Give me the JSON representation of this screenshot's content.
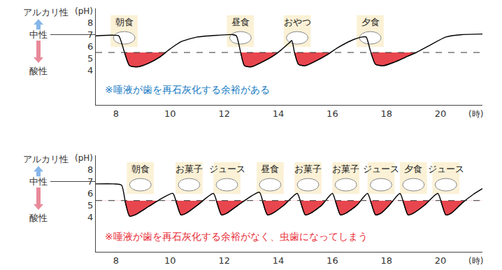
{
  "chart_data": [
    {
      "type": "line",
      "x": [
        7.25,
        7.9,
        8.1,
        8.3,
        8.5,
        8.8,
        9.2,
        9.6,
        10.0,
        10.4,
        11.0,
        11.8,
        12.3,
        12.45,
        12.6,
        12.75,
        13.0,
        13.4,
        13.8,
        14.1,
        14.4,
        14.5,
        14.6,
        14.75,
        15.0,
        15.4,
        15.8,
        16.2,
        16.7,
        17.1,
        17.25,
        17.4,
        17.6,
        17.9,
        18.3,
        18.7,
        19.1,
        19.6,
        20.2,
        20.8,
        21.55
      ],
      "values": [
        6.9,
        6.95,
        6.9,
        5.6,
        4.4,
        4.3,
        4.6,
        5.1,
        5.8,
        6.4,
        6.8,
        6.95,
        7.0,
        6.9,
        5.6,
        4.4,
        4.3,
        4.7,
        5.2,
        5.7,
        6.3,
        6.5,
        5.5,
        4.5,
        4.4,
        4.8,
        5.3,
        5.9,
        6.5,
        6.8,
        6.8,
        5.7,
        4.5,
        4.4,
        4.7,
        5.1,
        5.5,
        6.1,
        6.8,
        7.0,
        7.05
      ],
      "color": "#000000",
      "xlim": [
        7.25,
        21.55
      ],
      "ylim": [
        1.1,
        9.2
      ],
      "xticks": [
        8,
        10,
        12,
        14,
        16,
        18,
        20
      ],
      "yticks": [
        4,
        5,
        6,
        7,
        8
      ],
      "xlabel": "(時)",
      "ylabel": "(pH)",
      "threshold": 5.5,
      "scale_labels": {
        "alkaline": "アルカリ性",
        "neutral": {
          "text": "中性",
          "value": 7
        },
        "acidic": "酸性"
      },
      "annotations": [
        {
          "x": 8.3,
          "text": "朝食"
        },
        {
          "x": 12.6,
          "text": "昼食"
        },
        {
          "x": 14.7,
          "text": "おやつ"
        },
        {
          "x": 17.4,
          "text": "夕食"
        }
      ],
      "note": {
        "text": "※唾液が歯を再石灰化する余裕がある",
        "color": "#1a7dc4"
      }
    },
    {
      "type": "line",
      "x": [
        7.25,
        7.9,
        8.2,
        8.35,
        8.5,
        8.7,
        9.2,
        9.7,
        10.1,
        10.25,
        10.4,
        10.6,
        11.0,
        11.6,
        11.75,
        11.9,
        12.1,
        12.5,
        13.3,
        13.45,
        13.6,
        13.8,
        14.2,
        14.7,
        14.85,
        15.0,
        15.2,
        15.6,
        16.0,
        16.15,
        16.3,
        16.5,
        16.9,
        17.3,
        17.45,
        17.6,
        17.8,
        18.1,
        18.5,
        18.65,
        18.8,
        19.0,
        19.4,
        19.9,
        20.05,
        20.2,
        20.4,
        20.8,
        21.2,
        21.55
      ],
      "values": [
        6.8,
        6.8,
        6.7,
        5.2,
        4.1,
        4.2,
        4.9,
        5.6,
        6.0,
        5.1,
        4.2,
        4.35,
        5.0,
        6.0,
        5.1,
        4.2,
        4.35,
        5.0,
        6.1,
        5.1,
        4.2,
        4.35,
        5.0,
        6.0,
        5.1,
        4.2,
        4.35,
        5.0,
        6.0,
        5.1,
        4.2,
        4.35,
        5.0,
        6.0,
        5.1,
        4.2,
        4.35,
        5.0,
        6.0,
        5.1,
        4.2,
        4.35,
        5.0,
        6.0,
        5.1,
        4.2,
        4.35,
        5.2,
        5.9,
        6.4
      ],
      "color": "#000000",
      "xlim": [
        7.25,
        21.55
      ],
      "ylim": [
        1.1,
        9.2
      ],
      "xticks": [
        8,
        10,
        12,
        14,
        16,
        18,
        20
      ],
      "yticks": [
        4,
        5,
        6,
        7,
        8
      ],
      "xlabel": "(時)",
      "ylabel": "(pH)",
      "threshold": 5.4,
      "scale_labels": {
        "alkaline": "アルカリ性",
        "neutral": {
          "text": "中性",
          "value": 7
        },
        "acidic": "酸性"
      },
      "annotations": [
        {
          "x": 8.9,
          "text": "朝食"
        },
        {
          "x": 10.7,
          "text": "お菓子"
        },
        {
          "x": 12.1,
          "text": "ジュース"
        },
        {
          "x": 13.7,
          "text": "昼食"
        },
        {
          "x": 15.1,
          "text": "お菓子"
        },
        {
          "x": 16.5,
          "text": "お菓子"
        },
        {
          "x": 17.8,
          "text": "ジュース"
        },
        {
          "x": 19.0,
          "text": "夕食"
        },
        {
          "x": 20.2,
          "text": "ジュース"
        }
      ],
      "note": {
        "text": "※唾液が歯を再石灰化する余裕がなく、虫歯になってしまう",
        "color": "#e8303a"
      }
    }
  ]
}
